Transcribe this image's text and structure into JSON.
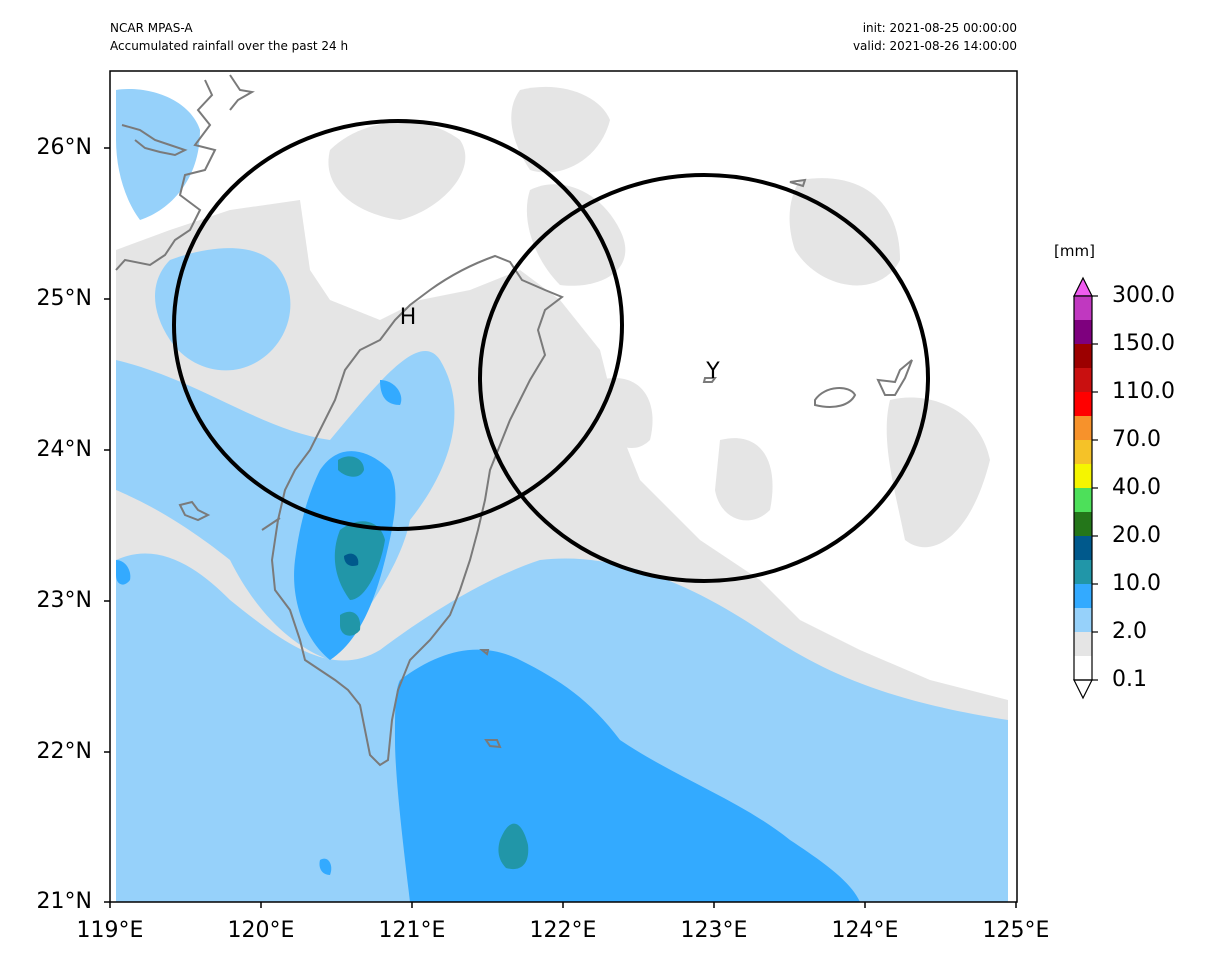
{
  "header": {
    "model": "NCAR MPAS-A",
    "description": "Accumulated rainfall over the past 24 h",
    "init": "init: 2021-08-25 00:00:00",
    "valid": "valid: 2021-08-26 14:00:00"
  },
  "axes": {
    "y_ticks": [
      "26°N",
      "25°N",
      "24°N",
      "23°N",
      "22°N",
      "21°N"
    ],
    "x_ticks": [
      "119°E",
      "120°E",
      "121°E",
      "122°E",
      "123°E",
      "124°E",
      "125°E"
    ]
  },
  "markers": [
    {
      "label": "H",
      "lon": 120.95,
      "lat": 24.85
    },
    {
      "label": "Y",
      "lon": 123.0,
      "lat": 24.5
    }
  ],
  "colorbar": {
    "units": "[mm]",
    "labels": [
      "300.0",
      "150.0",
      "110.0",
      "70.0",
      "40.0",
      "20.0",
      "10.0",
      "2.0",
      "0.1"
    ],
    "colors": [
      "#ffffff",
      "#e5e5e5",
      "#96d1fa",
      "#33aaff",
      "#2196a8",
      "#00598c",
      "#24761a",
      "#4de05a",
      "#f5f500",
      "#f5c228",
      "#f7922b",
      "#ff0000",
      "#c91010",
      "#9c0000",
      "#7e007e",
      "#c038c0",
      "#f05cf0"
    ]
  },
  "map_extent": {
    "lon": [
      119,
      125
    ],
    "lat": [
      21,
      26.5
    ]
  }
}
